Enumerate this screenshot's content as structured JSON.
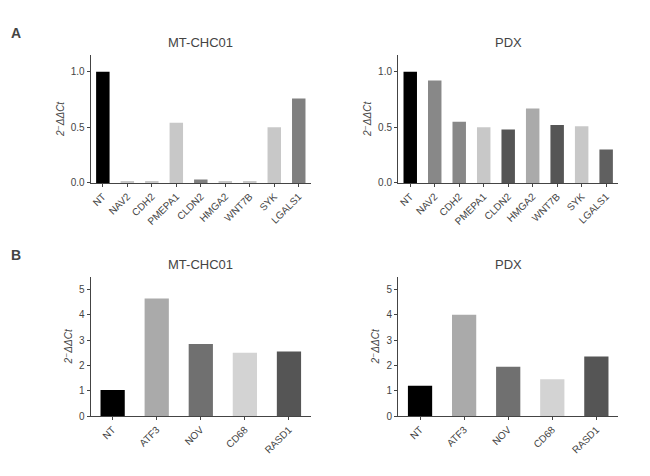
{
  "chart_data": [
    {
      "type": "bar",
      "title": "MT-CHC01",
      "ylabel": "2⁻ΔΔCt",
      "annotations": [
        "A"
      ],
      "categories": [
        "NT",
        "NAV2",
        "CDH2",
        "PMEPA1",
        "CLDN2",
        "HMGA2",
        "WNT7B",
        "SYK",
        "LGALS1"
      ],
      "values": [
        1.0,
        0.01,
        0.01,
        0.54,
        0.03,
        0.01,
        0.01,
        0.5,
        0.76
      ],
      "colors": [
        "#000000",
        "#c8c8c8",
        "#c8c8c8",
        "#c8c8c8",
        "#808080",
        "#c8c8c8",
        "#c8c8c8",
        "#c8c8c8",
        "#808080"
      ],
      "ylim": [
        0,
        1.15
      ],
      "yticks": [
        {
          "value": 0.0,
          "label": "0.0"
        },
        {
          "value": 0.5,
          "label": "0.5"
        },
        {
          "value": 1.0,
          "label": "1.0"
        }
      ],
      "grid": false
    },
    {
      "type": "bar",
      "title": "PDX",
      "ylabel": "2⁻ΔΔCt",
      "categories": [
        "NT",
        "NAV2",
        "CDH2",
        "PMEPA1",
        "CLDN2",
        "HMGA2",
        "WNT7B",
        "SYK",
        "LGALS1"
      ],
      "values": [
        1.0,
        0.92,
        0.55,
        0.5,
        0.48,
        0.67,
        0.52,
        0.51,
        0.3
      ],
      "colors": [
        "#000000",
        "#888888",
        "#888888",
        "#c8c8c8",
        "#555555",
        "#aaaaaa",
        "#555555",
        "#c8c8c8",
        "#606060"
      ],
      "ylim": [
        0,
        1.15
      ],
      "yticks": [
        {
          "value": 0.0,
          "label": "0.0"
        },
        {
          "value": 0.5,
          "label": "0.5"
        },
        {
          "value": 1.0,
          "label": "1.0"
        }
      ],
      "grid": false
    },
    {
      "type": "bar",
      "title": "MT-CHC01",
      "ylabel": "2⁻ΔΔCt",
      "annotations": [
        "B"
      ],
      "categories": [
        "NT",
        "ATF3",
        "NOV",
        "CD68",
        "RASD1"
      ],
      "values": [
        1.03,
        4.65,
        2.85,
        2.5,
        2.55
      ],
      "colors": [
        "#000000",
        "#aaaaaa",
        "#707070",
        "#d3d3d3",
        "#555555"
      ],
      "ylim": [
        0,
        5.5
      ],
      "yticks": [
        0,
        1,
        2,
        3,
        4,
        5
      ],
      "grid": false
    },
    {
      "type": "bar",
      "title": "PDX",
      "ylabel": "2⁻ΔΔCt",
      "categories": [
        "NT",
        "ATF3",
        "NOV",
        "CD68",
        "RASD1"
      ],
      "values": [
        1.2,
        4.0,
        1.95,
        1.45,
        2.35
      ],
      "colors": [
        "#000000",
        "#aaaaaa",
        "#707070",
        "#d3d3d3",
        "#555555"
      ],
      "ylim": [
        0,
        5.5
      ],
      "yticks": [
        0,
        1,
        2,
        3,
        4,
        5
      ],
      "grid": false
    }
  ]
}
